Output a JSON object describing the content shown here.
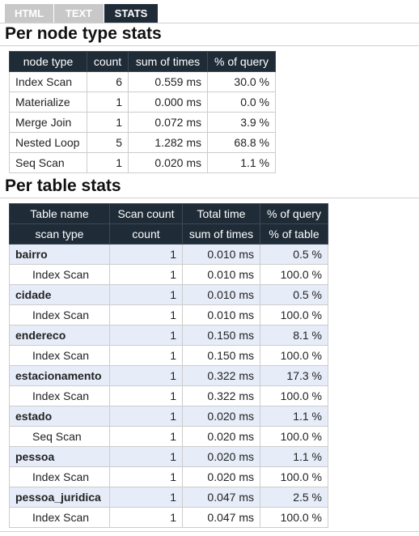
{
  "tabs": [
    {
      "label": "HTML",
      "active": false
    },
    {
      "label": "TEXT",
      "active": false
    },
    {
      "label": "STATS",
      "active": true
    }
  ],
  "colors": {
    "header_bg": "#1f2c38",
    "tab_inactive": "#c8c8c8",
    "row_highlight": "#e6ecf8"
  },
  "node_section": {
    "title": "Per node type stats",
    "headers": [
      "node type",
      "count",
      "sum of times",
      "% of query"
    ],
    "rows": [
      [
        "Index Scan",
        "6",
        "0.559 ms",
        "30.0 %"
      ],
      [
        "Materialize",
        "1",
        "0.000 ms",
        "0.0 %"
      ],
      [
        "Merge Join",
        "1",
        "0.072 ms",
        "3.9 %"
      ],
      [
        "Nested Loop",
        "5",
        "1.282 ms",
        "68.8 %"
      ],
      [
        "Seq Scan",
        "1",
        "0.020 ms",
        "1.1 %"
      ]
    ]
  },
  "table_section": {
    "title": "Per table stats",
    "headers1": [
      "Table name",
      "Scan count",
      "Total time",
      "% of query"
    ],
    "headers2": [
      "scan type",
      "count",
      "sum of times",
      "% of table"
    ],
    "groups": [
      {
        "table": [
          "bairro",
          "1",
          "0.010 ms",
          "0.5 %"
        ],
        "scan": [
          "Index Scan",
          "1",
          "0.010 ms",
          "100.0 %"
        ]
      },
      {
        "table": [
          "cidade",
          "1",
          "0.010 ms",
          "0.5 %"
        ],
        "scan": [
          "Index Scan",
          "1",
          "0.010 ms",
          "100.0 %"
        ]
      },
      {
        "table": [
          "endereco",
          "1",
          "0.150 ms",
          "8.1 %"
        ],
        "scan": [
          "Index Scan",
          "1",
          "0.150 ms",
          "100.0 %"
        ]
      },
      {
        "table": [
          "estacionamento",
          "1",
          "0.322 ms",
          "17.3 %"
        ],
        "scan": [
          "Index Scan",
          "1",
          "0.322 ms",
          "100.0 %"
        ]
      },
      {
        "table": [
          "estado",
          "1",
          "0.020 ms",
          "1.1 %"
        ],
        "scan": [
          "Seq Scan",
          "1",
          "0.020 ms",
          "100.0 %"
        ]
      },
      {
        "table": [
          "pessoa",
          "1",
          "0.020 ms",
          "1.1 %"
        ],
        "scan": [
          "Index Scan",
          "1",
          "0.020 ms",
          "100.0 %"
        ]
      },
      {
        "table": [
          "pessoa_juridica",
          "1",
          "0.047 ms",
          "2.5 %"
        ],
        "scan": [
          "Index Scan",
          "1",
          "0.047 ms",
          "100.0 %"
        ]
      }
    ]
  }
}
